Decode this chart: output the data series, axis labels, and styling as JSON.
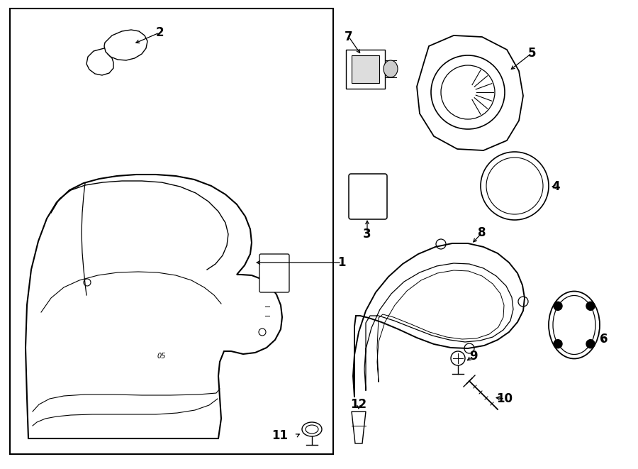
{
  "background_color": "#ffffff",
  "line_color": "#000000",
  "fig_w": 9.0,
  "fig_h": 6.61,
  "dpi": 100
}
